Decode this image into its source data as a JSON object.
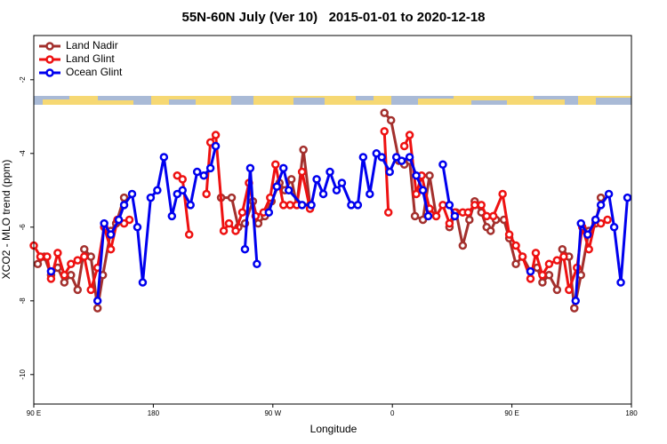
{
  "chart_data": {
    "type": "line",
    "title": "55N-60N July (Ver 10)   2015-01-01 to 2020-12-18",
    "x_label": "Longitude",
    "y_label": "XCO2 - MLO trend (ppm)",
    "xlim": [
      90,
      540
    ],
    "ylim": [
      -10.8,
      -0.8
    ],
    "xticks": [
      {
        "value": 90,
        "label": "90 E"
      },
      {
        "value": 180,
        "label": "180"
      },
      {
        "value": 270,
        "label": "90 W"
      },
      {
        "value": 360,
        "label": "0"
      },
      {
        "value": 450,
        "label": "90 E"
      },
      {
        "value": 540,
        "label": "180"
      }
    ],
    "yticks": [
      -2,
      -4,
      -6,
      -8,
      -10
    ],
    "legend": "top-left",
    "series": [
      {
        "name": "Land Nadir",
        "color": "#a3302d",
        "x": [
          93,
          98,
          103,
          108,
          113,
          118,
          123,
          128,
          133,
          138,
          142,
          148,
          152,
          158,
          null,
          231,
          239,
          244,
          249,
          255,
          259,
          264,
          269,
          275,
          279,
          284,
          288,
          293,
          298,
          null,
          354,
          359,
          365,
          369,
          373,
          377,
          383,
          388,
          393,
          null,
          403,
          408,
          413,
          418,
          422,
          427,
          431,
          434,
          438,
          444,
          448,
          453,
          458,
          464,
          469,
          473,
          478,
          484,
          488,
          493,
          497,
          502,
          508,
          513,
          517
        ],
        "values": [
          -7.0,
          -6.8,
          -7.3,
          -7.1,
          -7.5,
          -7.3,
          -7.7,
          -6.6,
          -6.8,
          -8.2,
          -7.3,
          -6.1,
          -5.9,
          -5.2,
          null,
          -5.2,
          -5.2,
          -6.0,
          -5.9,
          -5.3,
          -5.9,
          -5.7,
          -5.3,
          -4.8,
          -5.0,
          -4.7,
          -5.4,
          -3.9,
          -5.4,
          null,
          -2.9,
          -3.1,
          -4.2,
          -4.3,
          -4.2,
          -5.7,
          -5.8,
          -4.6,
          -5.7,
          null,
          -6.0,
          -5.6,
          -6.5,
          -5.8,
          -5.3,
          -5.6,
          -6.0,
          -6.1,
          -5.8,
          -5.8,
          -6.3,
          -7.0,
          -6.8,
          -7.2,
          -7.1,
          -7.5,
          -7.3,
          -7.7,
          -6.6,
          -6.8,
          -8.2,
          -7.3,
          -6.1,
          -5.9,
          -5.2
        ]
      },
      {
        "name": "Land Glint",
        "color": "#ee1111",
        "x": [
          90,
          95,
          100,
          103,
          108,
          113,
          118,
          123,
          128,
          133,
          138,
          143,
          148,
          153,
          158,
          162,
          null,
          198,
          202,
          207,
          null,
          220,
          223,
          227,
          233,
          237,
          242,
          247,
          252,
          257,
          263,
          268,
          272,
          278,
          283,
          288,
          292,
          298,
          null,
          354,
          357,
          null,
          369,
          373,
          378,
          382,
          388,
          393,
          398,
          403,
          407,
          413,
          417,
          422,
          427,
          431,
          436,
          443,
          448,
          453,
          458,
          464,
          468,
          473,
          478,
          484,
          489,
          493,
          499,
          503,
          508,
          513,
          517,
          522
        ],
        "values": [
          -6.5,
          -6.8,
          -6.8,
          -7.4,
          -6.7,
          -7.3,
          -7.0,
          -6.9,
          -6.8,
          -7.7,
          -7.1,
          -6.0,
          -6.6,
          -5.8,
          -5.9,
          -5.8,
          null,
          -4.6,
          -4.7,
          -6.2,
          null,
          -5.1,
          -3.7,
          -3.5,
          -6.1,
          -5.9,
          -6.1,
          -5.6,
          -4.8,
          -5.7,
          -5.6,
          -5.2,
          -4.3,
          -5.4,
          -5.4,
          -5.4,
          -4.5,
          -5.5,
          null,
          -3.4,
          -5.6,
          null,
          -3.8,
          -3.5,
          -5.1,
          -4.6,
          -5.5,
          -5.7,
          -5.4,
          -5.9,
          -5.6,
          -5.6,
          -5.6,
          -5.4,
          -5.4,
          -5.7,
          -5.7,
          -5.1,
          -6.2,
          -6.5,
          -6.8,
          -7.4,
          -6.7,
          -7.3,
          -7.0,
          -6.9,
          -6.8,
          -7.7,
          -7.1,
          -6.0,
          -6.6,
          -5.8,
          -5.9,
          -5.8
        ]
      },
      {
        "name": "Ocean Glint",
        "color": "#0000ee",
        "x": [
          103,
          null,
          138,
          143,
          148,
          154,
          158,
          164,
          168,
          172,
          178,
          183,
          188,
          194,
          198,
          202,
          208,
          213,
          218,
          223,
          227,
          null,
          249,
          253,
          258,
          null,
          267,
          273,
          278,
          282,
          292,
          299,
          303,
          308,
          313,
          318,
          322,
          329,
          334,
          338,
          343,
          348,
          352,
          358,
          363,
          367,
          373,
          378,
          383,
          387,
          null,
          398,
          403,
          407,
          null,
          464,
          null,
          498,
          502,
          507,
          513,
          517,
          523,
          527,
          532,
          537
        ],
        "values": [
          -7.2,
          null,
          -8.0,
          -5.9,
          -6.2,
          -5.8,
          -5.4,
          -5.1,
          -6.0,
          -7.5,
          -5.2,
          -5.0,
          -4.1,
          -5.7,
          -5.1,
          -5.0,
          -5.4,
          -4.5,
          -4.6,
          -4.4,
          -3.8,
          null,
          -6.6,
          -4.4,
          -7.0,
          null,
          -5.6,
          -4.9,
          -4.4,
          -5.0,
          -5.4,
          -5.4,
          -4.7,
          -5.1,
          -4.5,
          -5.0,
          -4.8,
          -5.4,
          -5.4,
          -4.1,
          -5.1,
          -4.0,
          -4.1,
          -4.5,
          -4.1,
          -4.2,
          -4.1,
          -4.6,
          -5.0,
          -5.7,
          null,
          -4.3,
          -5.4,
          -5.7,
          null,
          -7.2,
          null,
          -8.0,
          -5.9,
          -6.2,
          -5.8,
          -5.4,
          -5.1,
          -6.0,
          -7.5,
          -5.2
        ]
      }
    ]
  }
}
